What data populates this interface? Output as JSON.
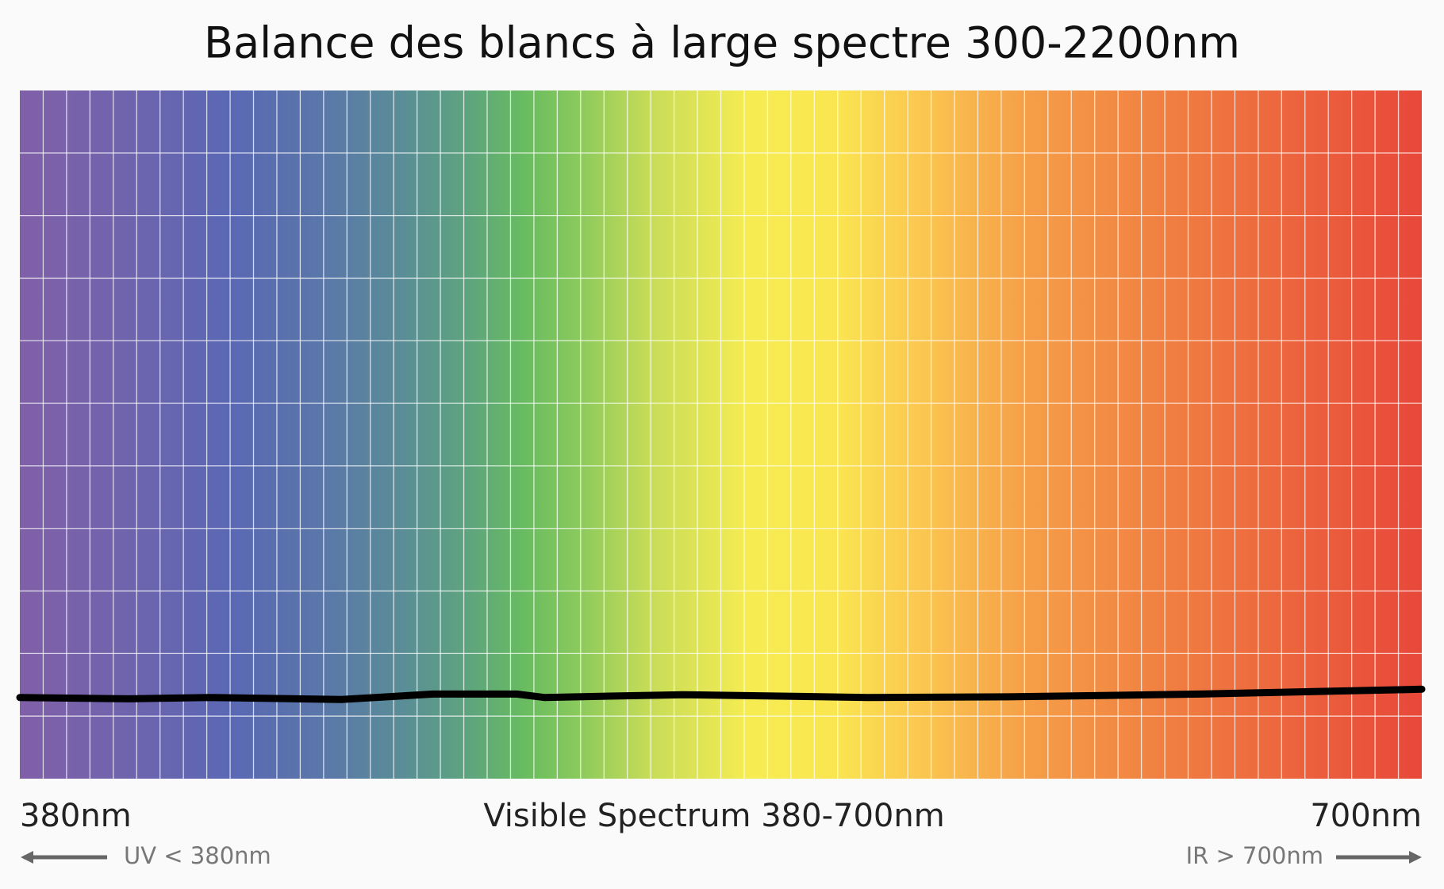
{
  "chart_data": {
    "type": "line",
    "title": "Balance des blancs à large spectre 300-2200nm",
    "subtitle": "Visible Spectrum 380-700nm",
    "annotations": [
      "UV < 380nm",
      "IR > 700nm"
    ],
    "x": [
      380,
      404.9,
      423.8,
      453.4,
      474.4,
      493.4,
      499.7,
      531.4,
      573.5,
      607.2,
      649.4,
      700
    ],
    "values": [
      11.8,
      11.6,
      11.8,
      11.5,
      12.3,
      12.3,
      11.8,
      12.2,
      11.8,
      11.9,
      12.3,
      13.0
    ],
    "color": "#000000",
    "xlim": [
      380,
      700
    ],
    "xticks": [
      {
        "value": 380,
        "label": "380nm"
      },
      {
        "value": 700,
        "label": "700nm"
      }
    ],
    "ylim": [
      0,
      100
    ],
    "grid": true
  }
}
